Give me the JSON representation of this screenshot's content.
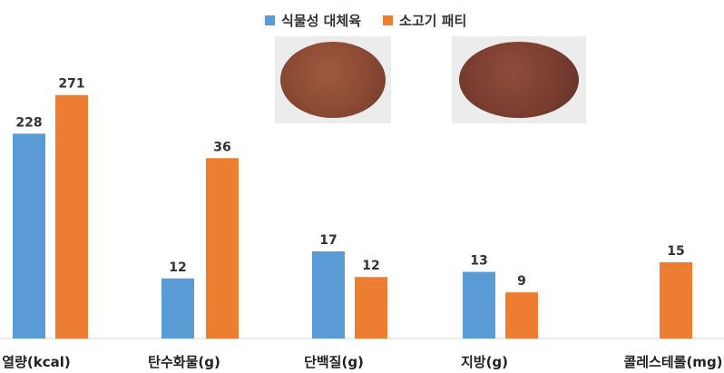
{
  "chart_data": {
    "type": "bar",
    "categories": [
      "열량(kcal)",
      "탄수화물(g)",
      "단백질(g)",
      "지방(g)",
      "콜레스테롤(mg)"
    ],
    "series": [
      {
        "name": "식물성 대체육",
        "color": "#5b9bd5",
        "values": [
          228,
          12,
          17,
          13,
          null
        ]
      },
      {
        "name": "소고기 패티",
        "color": "#ed7d31",
        "values": [
          271,
          36,
          12,
          9,
          15
        ]
      }
    ],
    "data_labels": [
      [
        "228",
        "12",
        "17",
        "13",
        ""
      ],
      [
        "271",
        "36",
        "12",
        "9",
        "15"
      ]
    ],
    "note": "Bar heights are scaled per category (not a shared axis)."
  },
  "photos": {
    "plant_patty_color": "#8a4a34",
    "beef_patty_color": "#7a3e30"
  }
}
